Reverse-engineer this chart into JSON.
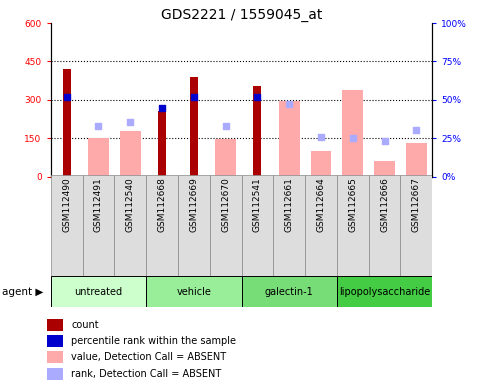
{
  "title": "GDS2221 / 1559045_at",
  "samples": [
    "GSM112490",
    "GSM112491",
    "GSM112540",
    "GSM112668",
    "GSM112669",
    "GSM112670",
    "GSM112541",
    "GSM112661",
    "GSM112664",
    "GSM112665",
    "GSM112666",
    "GSM112667"
  ],
  "groups": [
    {
      "label": "untreated",
      "color": "#ccffcc",
      "indices": [
        0,
        1,
        2
      ]
    },
    {
      "label": "vehicle",
      "color": "#99ee99",
      "indices": [
        3,
        4,
        5
      ]
    },
    {
      "label": "galectin-1",
      "color": "#77dd77",
      "indices": [
        6,
        7,
        8
      ]
    },
    {
      "label": "lipopolysaccharide",
      "color": "#44cc44",
      "indices": [
        9,
        10,
        11
      ]
    }
  ],
  "count_values": [
    420,
    null,
    null,
    255,
    390,
    null,
    355,
    null,
    null,
    null,
    null,
    null
  ],
  "rank_values": [
    310,
    null,
    null,
    270,
    310,
    null,
    310,
    null,
    null,
    null,
    null,
    null
  ],
  "absent_value": [
    null,
    152,
    178,
    null,
    null,
    148,
    null,
    295,
    100,
    340,
    62,
    130
  ],
  "absent_rank": [
    null,
    198,
    213,
    null,
    null,
    198,
    null,
    285,
    155,
    150,
    140,
    182
  ],
  "ylim": [
    0,
    600
  ],
  "y2lim": [
    0,
    100
  ],
  "yticks": [
    0,
    150,
    300,
    450,
    600
  ],
  "ytick_labels": [
    "0",
    "150",
    "300",
    "450",
    "600"
  ],
  "y2ticks": [
    0,
    25,
    50,
    75,
    100
  ],
  "y2tick_labels": [
    "0%",
    "25%",
    "50%",
    "75%",
    "100%"
  ],
  "dotted_lines": [
    150,
    300,
    450
  ],
  "count_color": "#aa0000",
  "rank_color": "#0000cc",
  "absent_value_color": "#ffaaaa",
  "absent_rank_color": "#aaaaff",
  "title_fontsize": 10,
  "tick_fontsize": 6.5,
  "legend_fontsize": 7,
  "group_label_fontsize": 7,
  "agent_fontsize": 7.5,
  "sample_bg_color": "#dddddd",
  "sample_border_color": "#888888"
}
